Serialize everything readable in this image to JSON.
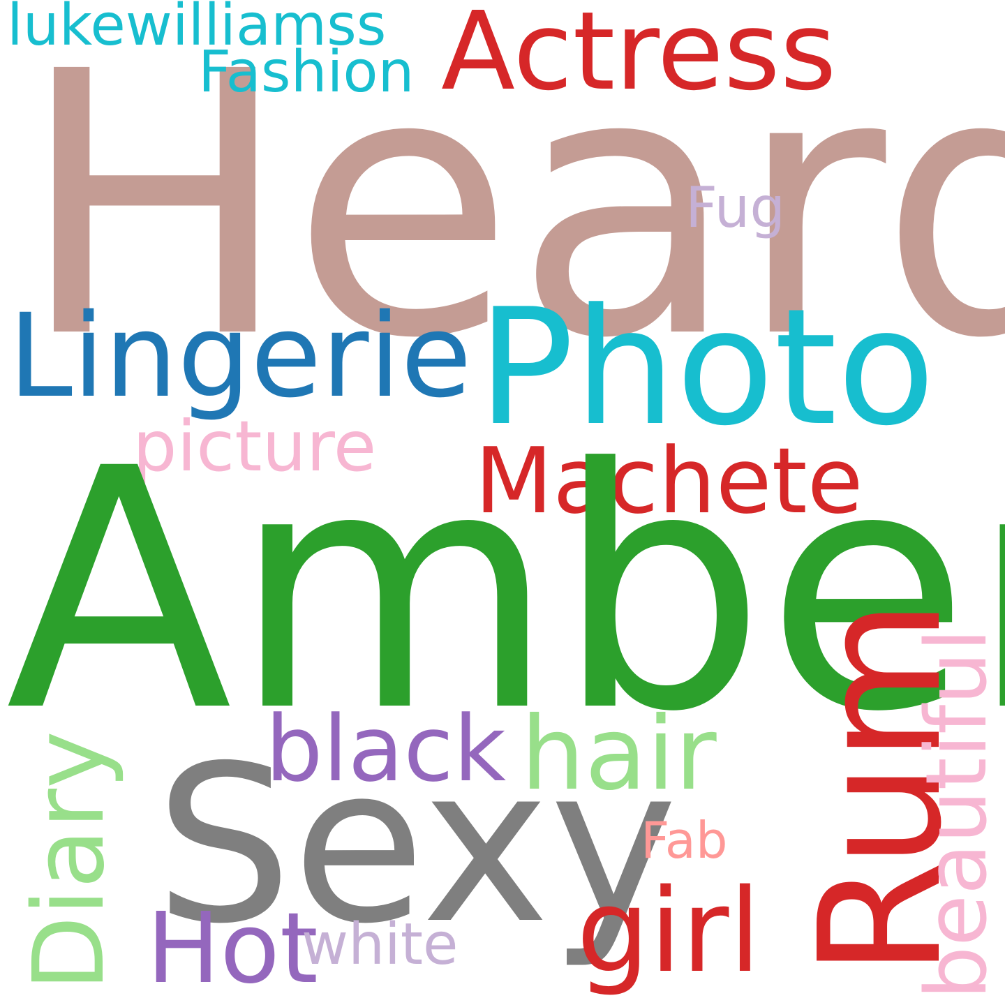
{
  "words": {
    "heard": {
      "text": "Heard",
      "color": "#c49c94"
    },
    "amber": {
      "text": "Amber",
      "color": "#2ca02c"
    },
    "photo": {
      "text": "Photo",
      "color": "#17becf"
    },
    "actress": {
      "text": "Actress",
      "color": "#d62728"
    },
    "lingerie": {
      "text": "Lingerie",
      "color": "#1f77b4"
    },
    "sexy": {
      "text": "Sexy",
      "color": "#7f7f7f"
    },
    "rum": {
      "text": "Rum",
      "color": "#d62728"
    },
    "machete": {
      "text": "Machete",
      "color": "#d62728"
    },
    "lukewilliamss": {
      "text": "lukewilliamss",
      "color": "#17becf"
    },
    "fashion": {
      "text": "Fashion",
      "color": "#17becf"
    },
    "picture": {
      "text": "picture",
      "color": "#f7b6d2"
    },
    "fug": {
      "text": "Fug",
      "color": "#c5b0d5"
    },
    "black": {
      "text": "black",
      "color": "#9467bd"
    },
    "hair": {
      "text": "hair",
      "color": "#98df8a"
    },
    "diary": {
      "text": "Diary",
      "color": "#98df8a"
    },
    "beautiful": {
      "text": "beautiful",
      "color": "#f7b6d2"
    },
    "girl": {
      "text": "girl",
      "color": "#d62728"
    },
    "hot": {
      "text": "Hot",
      "color": "#9467bd"
    },
    "white": {
      "text": "white",
      "color": "#c5b0d5"
    },
    "fab": {
      "text": "Fab",
      "color": "#ff9896"
    }
  }
}
